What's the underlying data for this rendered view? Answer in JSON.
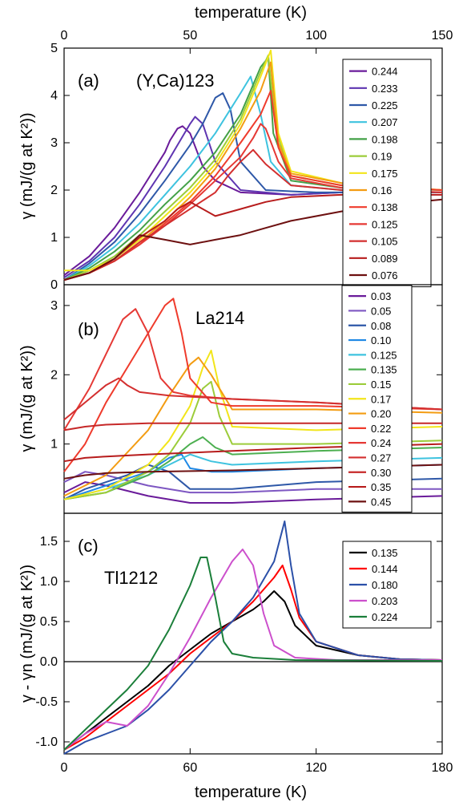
{
  "top_axis": {
    "label": "temperature (K)",
    "ticks": [
      "0",
      "50",
      "100",
      "150"
    ]
  },
  "bottom_axis": {
    "label": "temperature (K)"
  },
  "chart_data": [
    {
      "type": "line",
      "panel_tag": "(a)",
      "material": "(Y,Ca)123",
      "ylabel": "γ  (mJ/(g at K²))",
      "xlim": [
        0,
        150
      ],
      "ylim": [
        0,
        5
      ],
      "y_ticks": [
        "0",
        "1",
        "2",
        "3",
        "4",
        "5"
      ],
      "legend_position": "right",
      "series": [
        {
          "name": "0.244",
          "color": "#6a1b9a",
          "x": [
            0,
            10,
            20,
            30,
            40,
            42,
            45,
            47,
            50,
            55,
            60,
            70,
            90,
            110,
            150
          ],
          "y": [
            0.2,
            0.6,
            1.2,
            1.95,
            2.8,
            3.05,
            3.3,
            3.35,
            3.2,
            2.5,
            2.2,
            1.95,
            1.9,
            1.95,
            1.95
          ]
        },
        {
          "name": "0.233",
          "color": "#5e35b1",
          "x": [
            0,
            10,
            20,
            30,
            40,
            45,
            50,
            52,
            55,
            60,
            70,
            90,
            110,
            150
          ],
          "y": [
            0.15,
            0.5,
            1.0,
            1.7,
            2.5,
            2.95,
            3.4,
            3.55,
            3.4,
            2.6,
            2.0,
            1.9,
            1.95,
            1.95
          ]
        },
        {
          "name": "0.225",
          "color": "#2e58a8",
          "x": [
            0,
            10,
            20,
            30,
            40,
            50,
            55,
            60,
            63,
            66,
            70,
            80,
            100,
            150
          ],
          "y": [
            0.1,
            0.45,
            0.9,
            1.5,
            2.2,
            2.95,
            3.4,
            3.95,
            4.05,
            3.7,
            2.6,
            2.0,
            1.95,
            1.95
          ]
        },
        {
          "name": "0.207",
          "color": "#3ec3df",
          "x": [
            0,
            10,
            20,
            30,
            40,
            50,
            60,
            70,
            74,
            78,
            82,
            90,
            110,
            150
          ],
          "y": [
            0.1,
            0.4,
            0.8,
            1.3,
            1.9,
            2.5,
            3.2,
            4.05,
            4.4,
            3.6,
            2.6,
            2.1,
            2.0,
            1.95
          ]
        },
        {
          "name": "0.198",
          "color": "#43a047",
          "x": [
            0,
            10,
            20,
            30,
            40,
            50,
            60,
            70,
            78,
            81,
            83,
            90,
            110,
            150
          ],
          "y": [
            0.1,
            0.35,
            0.7,
            1.15,
            1.7,
            2.2,
            2.8,
            3.6,
            4.6,
            4.8,
            3.2,
            2.2,
            2.05,
            2.0
          ]
        },
        {
          "name": "0.19",
          "color": "#9ccc3a",
          "x": [
            0,
            10,
            20,
            30,
            40,
            50,
            60,
            70,
            78,
            81,
            84,
            90,
            110,
            150
          ],
          "y": [
            0.1,
            0.3,
            0.6,
            1.05,
            1.55,
            2.05,
            2.65,
            3.5,
            4.5,
            4.85,
            3.3,
            2.3,
            2.1,
            2.0
          ]
        },
        {
          "name": "0.175",
          "color": "#f2e51a",
          "x": [
            0,
            10,
            20,
            30,
            40,
            50,
            60,
            70,
            78,
            82,
            85,
            90,
            110,
            150
          ],
          "y": [
            0.3,
            0.3,
            0.55,
            0.95,
            1.45,
            1.95,
            2.55,
            3.4,
            4.4,
            4.95,
            3.2,
            2.4,
            2.15,
            2.0
          ]
        },
        {
          "name": "0.16",
          "color": "#f39c12",
          "x": [
            0,
            10,
            20,
            30,
            40,
            50,
            60,
            70,
            78,
            82,
            85,
            90,
            110,
            150
          ],
          "y": [
            0.1,
            0.25,
            0.5,
            0.9,
            1.35,
            1.85,
            2.45,
            3.3,
            4.1,
            4.7,
            3.0,
            2.35,
            2.15,
            2.0
          ]
        },
        {
          "name": "0.138",
          "color": "#ef3b2c",
          "x": [
            0,
            10,
            20,
            30,
            40,
            50,
            60,
            70,
            78,
            82,
            85,
            90,
            110,
            150
          ],
          "y": [
            0.1,
            0.25,
            0.5,
            0.85,
            1.3,
            1.75,
            2.3,
            3.0,
            3.6,
            4.1,
            2.9,
            2.3,
            2.1,
            2.0
          ]
        },
        {
          "name": "0.125",
          "color": "#e53935",
          "x": [
            0,
            10,
            20,
            30,
            40,
            50,
            60,
            70,
            75,
            78,
            80,
            85,
            90,
            110,
            150
          ],
          "y": [
            0.1,
            0.25,
            0.5,
            0.85,
            1.25,
            1.7,
            2.2,
            2.7,
            3.1,
            3.4,
            3.3,
            2.6,
            2.25,
            2.05,
            1.95
          ]
        },
        {
          "name": "0.105",
          "color": "#d32f2f",
          "x": [
            0,
            10,
            20,
            30,
            40,
            50,
            60,
            65,
            70,
            75,
            80,
            90,
            110,
            150
          ],
          "y": [
            0.1,
            0.25,
            0.5,
            0.9,
            1.25,
            1.6,
            1.95,
            2.3,
            2.6,
            2.85,
            2.55,
            2.1,
            2.0,
            1.95
          ]
        },
        {
          "name": "0.089",
          "color": "#b71c1c",
          "x": [
            0,
            10,
            20,
            30,
            40,
            45,
            50,
            55,
            60,
            70,
            80,
            90,
            110,
            150
          ],
          "y": [
            0.1,
            0.25,
            0.55,
            1.0,
            1.35,
            1.6,
            1.75,
            1.6,
            1.45,
            1.6,
            1.75,
            1.85,
            1.9,
            1.9
          ]
        },
        {
          "name": "0.076",
          "color": "#6d1010",
          "x": [
            0,
            10,
            20,
            30,
            40,
            50,
            60,
            70,
            80,
            90,
            110,
            130,
            150
          ],
          "y": [
            0.1,
            0.25,
            0.55,
            1.05,
            0.95,
            0.85,
            0.95,
            1.05,
            1.2,
            1.35,
            1.55,
            1.7,
            1.8
          ]
        }
      ]
    },
    {
      "type": "line",
      "panel_tag": "(b)",
      "material": "La214",
      "ylabel": "γ  (mJ/(g at K²))",
      "xlim": [
        0,
        90
      ],
      "ylim": [
        0,
        3.3
      ],
      "y_ticks": [
        "1",
        "2",
        "3"
      ],
      "legend_position": "right",
      "series": [
        {
          "name": "0.03",
          "color": "#6a1b9a",
          "x": [
            0,
            5,
            10,
            20,
            30,
            40,
            60,
            90
          ],
          "y": [
            0.3,
            0.45,
            0.4,
            0.25,
            0.15,
            0.15,
            0.2,
            0.25
          ]
        },
        {
          "name": "0.05",
          "color": "#7e57c2",
          "x": [
            0,
            5,
            10,
            20,
            30,
            40,
            60,
            90
          ],
          "y": [
            0.45,
            0.6,
            0.55,
            0.4,
            0.3,
            0.3,
            0.35,
            0.35
          ]
        },
        {
          "name": "0.08",
          "color": "#2e58a8",
          "x": [
            0,
            5,
            10,
            15,
            20,
            25,
            30,
            40,
            60,
            90
          ],
          "y": [
            0.2,
            0.35,
            0.45,
            0.55,
            0.7,
            0.6,
            0.35,
            0.35,
            0.45,
            0.5
          ]
        },
        {
          "name": "0.10",
          "color": "#1e88e5",
          "x": [
            0,
            5,
            10,
            15,
            20,
            25,
            28,
            30,
            35,
            40,
            60,
            90
          ],
          "y": [
            0.2,
            0.3,
            0.4,
            0.5,
            0.6,
            0.8,
            0.85,
            0.65,
            0.6,
            0.6,
            0.65,
            0.7
          ]
        },
        {
          "name": "0.125",
          "color": "#3ec3df",
          "x": [
            0,
            10,
            20,
            25,
            30,
            35,
            40,
            60,
            90
          ],
          "y": [
            0.2,
            0.35,
            0.55,
            0.7,
            0.85,
            0.75,
            0.7,
            0.75,
            0.8
          ]
        },
        {
          "name": "0.135",
          "color": "#4caf50",
          "x": [
            0,
            10,
            20,
            25,
            30,
            33,
            36,
            40,
            60,
            90
          ],
          "y": [
            0.2,
            0.3,
            0.55,
            0.75,
            1.0,
            1.1,
            0.95,
            0.85,
            0.9,
            0.95
          ]
        },
        {
          "name": "0.15",
          "color": "#9ccc3a",
          "x": [
            0,
            10,
            20,
            25,
            30,
            33,
            35,
            37,
            40,
            60,
            90
          ],
          "y": [
            0.2,
            0.3,
            0.6,
            0.85,
            1.3,
            1.8,
            1.9,
            1.4,
            1.0,
            1.0,
            1.05
          ]
        },
        {
          "name": "0.17",
          "color": "#f2e51a",
          "x": [
            0,
            10,
            20,
            25,
            30,
            33,
            35,
            37,
            40,
            60,
            90
          ],
          "y": [
            0.2,
            0.35,
            0.7,
            1.05,
            1.55,
            2.1,
            2.35,
            1.8,
            1.25,
            1.2,
            1.25
          ]
        },
        {
          "name": "0.20",
          "color": "#f39c12",
          "x": [
            0,
            10,
            20,
            25,
            30,
            32,
            35,
            38,
            40,
            60,
            90
          ],
          "y": [
            0.25,
            0.55,
            1.2,
            1.7,
            2.15,
            2.25,
            2.0,
            1.7,
            1.5,
            1.5,
            1.45
          ]
        },
        {
          "name": "0.22",
          "color": "#ef3b2c",
          "x": [
            0,
            5,
            10,
            15,
            20,
            24,
            26,
            28,
            30,
            35,
            40,
            60,
            90
          ],
          "y": [
            0.6,
            1.0,
            1.6,
            2.1,
            2.6,
            3.0,
            3.1,
            2.6,
            1.95,
            1.6,
            1.55,
            1.55,
            1.5
          ]
        },
        {
          "name": "0.24",
          "color": "#e53935",
          "x": [
            0,
            3,
            6,
            10,
            14,
            17,
            20,
            23,
            26,
            30,
            40,
            60,
            90
          ],
          "y": [
            1.2,
            1.5,
            1.8,
            2.3,
            2.8,
            2.95,
            2.6,
            1.95,
            1.75,
            1.7,
            1.65,
            1.6,
            1.5
          ]
        },
        {
          "name": "0.27",
          "color": "#d32f2f",
          "x": [
            0,
            3,
            6,
            10,
            13,
            15,
            18,
            25,
            40,
            60,
            90
          ],
          "y": [
            1.35,
            1.5,
            1.65,
            1.85,
            1.95,
            1.85,
            1.75,
            1.7,
            1.65,
            1.6,
            1.5
          ]
        },
        {
          "name": "0.30",
          "color": "#c62828",
          "x": [
            0,
            5,
            10,
            20,
            40,
            60,
            90
          ],
          "y": [
            1.2,
            1.25,
            1.28,
            1.3,
            1.3,
            1.3,
            1.3
          ]
        },
        {
          "name": "0.35",
          "color": "#b71c1c",
          "x": [
            0,
            5,
            10,
            20,
            40,
            60,
            90
          ],
          "y": [
            0.75,
            0.8,
            0.82,
            0.85,
            0.9,
            0.95,
            1.0
          ]
        },
        {
          "name": "0.45",
          "color": "#6d1010",
          "x": [
            0,
            5,
            10,
            20,
            40,
            60,
            90
          ],
          "y": [
            0.5,
            0.55,
            0.58,
            0.6,
            0.62,
            0.65,
            0.7
          ]
        }
      ]
    },
    {
      "type": "line",
      "panel_tag": "(c)",
      "material": "Tl1212",
      "ylabel": "γ - γn  (mJ/(g at K²))",
      "xlim": [
        0,
        180
      ],
      "ylim": [
        -1.15,
        1.85
      ],
      "y_ticks": [
        "-1.0",
        "-0.5",
        "0.0",
        "0.5",
        "1.0",
        "1.5"
      ],
      "x_ticks": [
        "0",
        "60",
        "120",
        "180"
      ],
      "legend_position": "top-right",
      "series": [
        {
          "name": "0.135",
          "color": "#000000",
          "x": [
            0,
            10,
            20,
            30,
            40,
            50,
            60,
            70,
            80,
            90,
            95,
            100,
            105,
            110,
            120,
            140,
            160,
            180
          ],
          "y": [
            -1.1,
            -0.9,
            -0.7,
            -0.5,
            -0.3,
            -0.05,
            0.15,
            0.35,
            0.5,
            0.65,
            0.75,
            0.88,
            0.75,
            0.45,
            0.2,
            0.08,
            0.03,
            0.02
          ]
        },
        {
          "name": "0.144",
          "color": "#ff0000",
          "x": [
            0,
            10,
            20,
            30,
            40,
            50,
            60,
            70,
            80,
            90,
            100,
            104,
            108,
            112,
            120,
            140,
            160,
            180
          ],
          "y": [
            -1.1,
            -0.95,
            -0.75,
            -0.55,
            -0.35,
            -0.15,
            0.1,
            0.3,
            0.5,
            0.75,
            1.05,
            1.2,
            0.9,
            0.55,
            0.25,
            0.08,
            0.03,
            0.02
          ]
        },
        {
          "name": "0.180",
          "color": "#2b50a8",
          "x": [
            0,
            10,
            20,
            30,
            40,
            50,
            60,
            70,
            80,
            90,
            100,
            105,
            108,
            112,
            120,
            140,
            160,
            180
          ],
          "y": [
            -1.15,
            -1.0,
            -0.9,
            -0.8,
            -0.6,
            -0.35,
            -0.05,
            0.25,
            0.5,
            0.8,
            1.25,
            1.75,
            1.2,
            0.6,
            0.25,
            0.08,
            0.03,
            0.02
          ]
        },
        {
          "name": "0.203",
          "color": "#cc4fcc",
          "x": [
            0,
            10,
            20,
            30,
            40,
            50,
            60,
            70,
            80,
            85,
            90,
            95,
            100,
            110,
            130,
            180
          ],
          "y": [
            -1.1,
            -0.9,
            -0.75,
            -0.8,
            -0.55,
            -0.15,
            0.3,
            0.8,
            1.25,
            1.4,
            1.2,
            0.6,
            0.2,
            0.05,
            0.02,
            0.02
          ]
        },
        {
          "name": "0.224",
          "color": "#1b7f3a",
          "x": [
            0,
            10,
            20,
            30,
            40,
            50,
            60,
            65,
            68,
            72,
            76,
            80,
            90,
            110,
            180
          ],
          "y": [
            -1.1,
            -0.85,
            -0.6,
            -0.35,
            -0.05,
            0.4,
            0.95,
            1.3,
            1.3,
            0.8,
            0.25,
            0.1,
            0.05,
            0.02,
            0.01
          ]
        }
      ]
    }
  ]
}
